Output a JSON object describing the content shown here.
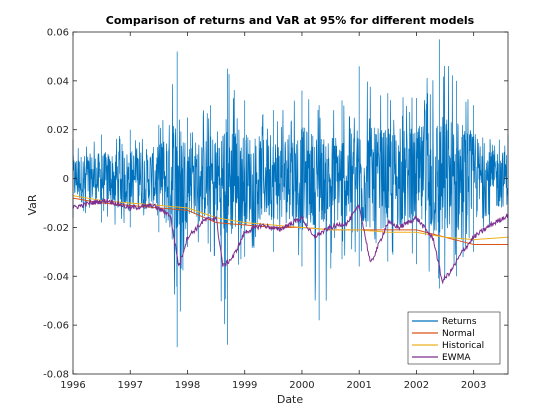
{
  "chart_data": {
    "type": "line",
    "title": "Comparison of returns and VaR at 95% for different models",
    "xlabel": "Date",
    "ylabel": "VaR",
    "xlim": [
      1996,
      2003.6
    ],
    "ylim": [
      -0.08,
      0.06
    ],
    "x_ticks": [
      "1996",
      "1997",
      "1998",
      "1999",
      "2000",
      "2001",
      "2002",
      "2003"
    ],
    "y_ticks": [
      "0.06",
      "0.04",
      "0.02",
      "0",
      "-0.02",
      "-0.04",
      "-0.06",
      "-0.08"
    ],
    "grid": false,
    "legend_position": "bottom-right",
    "colors": {
      "Returns": "#0072BD",
      "Normal": "#D95319",
      "Historical": "#EDB120",
      "EWMA": "#7E2F8E"
    },
    "series": [
      {
        "name": "Returns",
        "style": "noisy daily returns band",
        "x": [
          1996.0,
          1996.5,
          1997.0,
          1997.5,
          1997.82,
          1998.0,
          1998.4,
          1998.7,
          1999.0,
          1999.5,
          2000.0,
          2000.3,
          2000.7,
          2001.0,
          2001.5,
          2002.0,
          2002.4,
          2002.7,
          2003.0,
          2003.6
        ],
        "upper_envelope": [
          0.016,
          0.018,
          0.02,
          0.022,
          0.052,
          0.025,
          0.03,
          0.045,
          0.032,
          0.028,
          0.036,
          0.03,
          0.032,
          0.046,
          0.035,
          0.033,
          0.057,
          0.04,
          0.03,
          0.018
        ],
        "lower_envelope": [
          -0.016,
          -0.018,
          -0.02,
          -0.022,
          -0.069,
          -0.028,
          -0.03,
          -0.068,
          -0.032,
          -0.03,
          -0.036,
          -0.058,
          -0.033,
          -0.036,
          -0.034,
          -0.035,
          -0.045,
          -0.04,
          -0.03,
          -0.02
        ]
      },
      {
        "name": "Normal",
        "x": [
          1996.0,
          1996.5,
          1997.0,
          1997.5,
          1998.0,
          1998.5,
          1999.0,
          1999.5,
          2000.0,
          2000.5,
          2001.0,
          2001.5,
          2002.0,
          2002.5,
          2003.0,
          2003.6
        ],
        "y": [
          -0.008,
          -0.01,
          -0.011,
          -0.012,
          -0.013,
          -0.018,
          -0.019,
          -0.02,
          -0.02,
          -0.021,
          -0.021,
          -0.021,
          -0.021,
          -0.024,
          -0.027,
          -0.027
        ]
      },
      {
        "name": "Historical",
        "x": [
          1996.0,
          1996.5,
          1997.0,
          1997.5,
          1998.0,
          1998.5,
          1999.0,
          1999.5,
          2000.0,
          2000.5,
          2001.0,
          2001.5,
          2002.0,
          2002.5,
          2003.0,
          2003.6
        ],
        "y": [
          -0.007,
          -0.009,
          -0.01,
          -0.011,
          -0.012,
          -0.016,
          -0.018,
          -0.019,
          -0.02,
          -0.021,
          -0.021,
          -0.022,
          -0.022,
          -0.024,
          -0.025,
          -0.024
        ]
      },
      {
        "name": "EWMA",
        "x": [
          1996.0,
          1996.3,
          1996.6,
          1997.0,
          1997.4,
          1997.7,
          1997.85,
          1998.0,
          1998.3,
          1998.5,
          1998.62,
          1998.8,
          1999.0,
          1999.3,
          1999.6,
          2000.0,
          2000.2,
          2000.5,
          2000.8,
          2001.0,
          2001.2,
          2001.5,
          2001.7,
          2002.0,
          2002.3,
          2002.45,
          2002.6,
          2002.8,
          2003.0,
          2003.3,
          2003.6
        ],
        "y": [
          -0.012,
          -0.01,
          -0.009,
          -0.012,
          -0.011,
          -0.015,
          -0.036,
          -0.024,
          -0.017,
          -0.016,
          -0.036,
          -0.032,
          -0.022,
          -0.019,
          -0.021,
          -0.016,
          -0.024,
          -0.02,
          -0.018,
          -0.011,
          -0.035,
          -0.018,
          -0.02,
          -0.016,
          -0.025,
          -0.042,
          -0.038,
          -0.03,
          -0.024,
          -0.019,
          -0.015
        ]
      }
    ]
  }
}
